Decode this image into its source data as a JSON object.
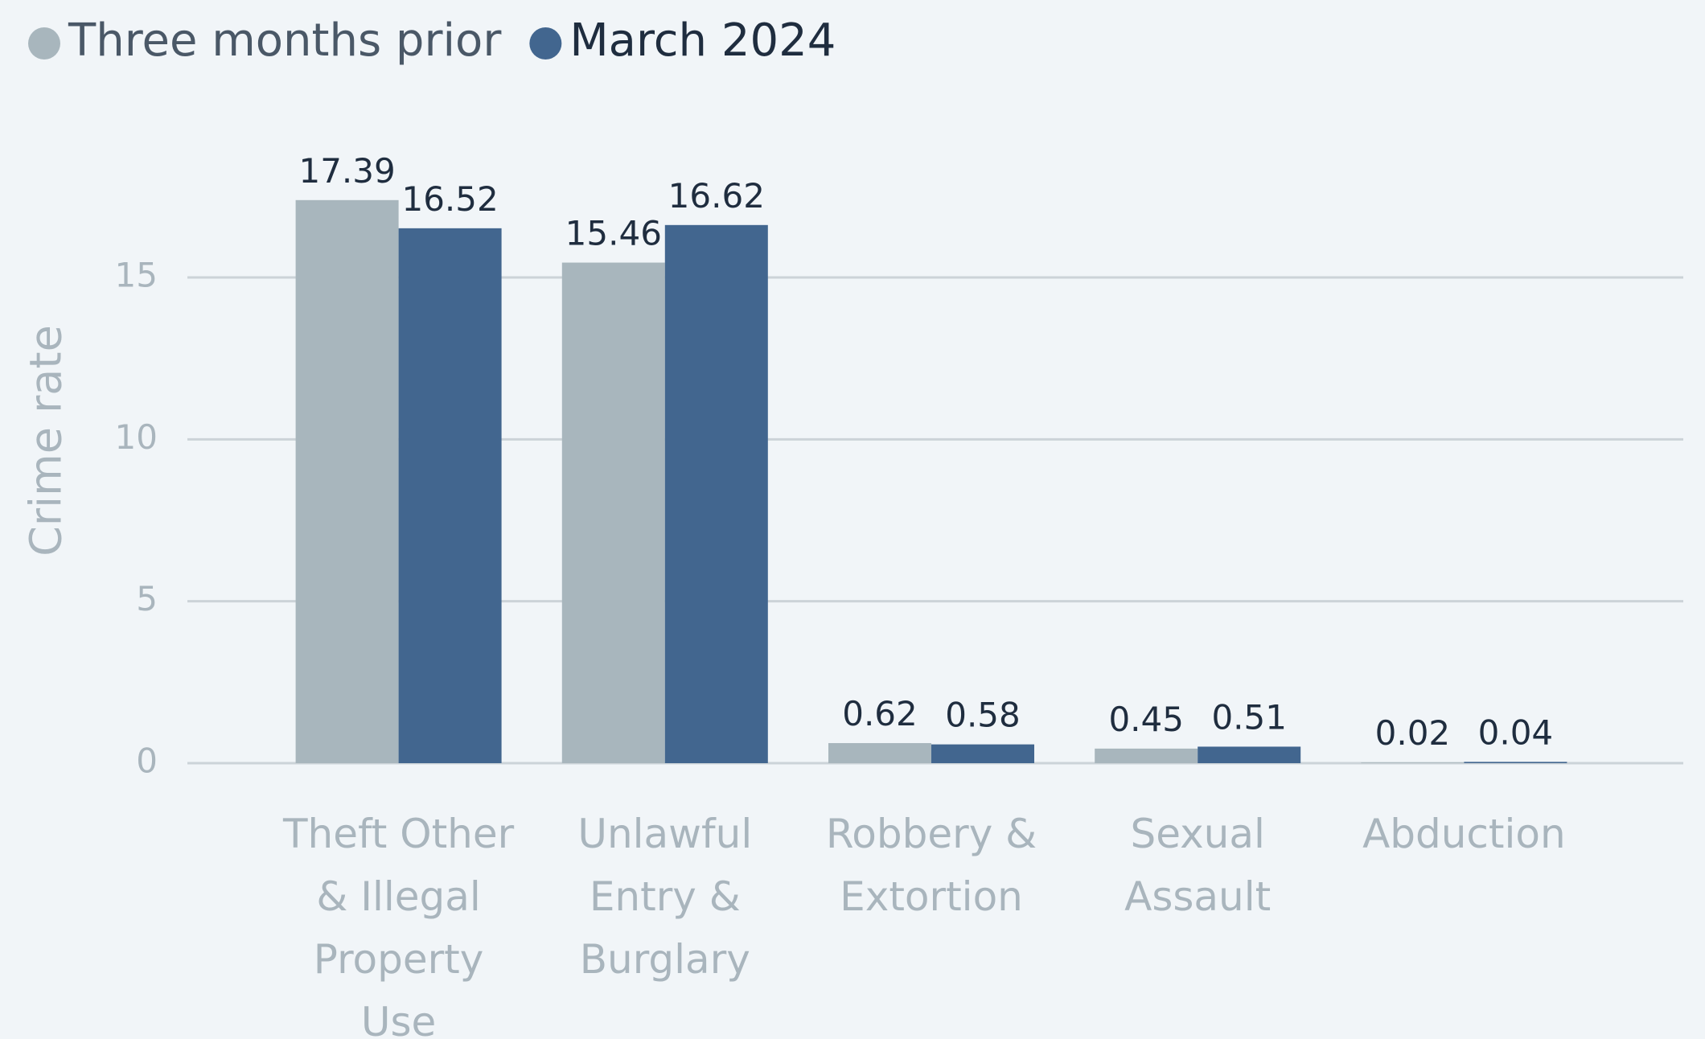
{
  "chart_data": {
    "type": "bar",
    "y_label": "Crime rate",
    "categories": [
      "Theft Other & Illegal Property Use",
      "Unlawful Entry & Burglary",
      "Robbery & Extortion",
      "Sexual Assault",
      "Abduction"
    ],
    "series": [
      {
        "name": "Three months prior",
        "color": "#a8b6bd",
        "values": [
          17.39,
          15.46,
          0.62,
          0.45,
          0.02
        ]
      },
      {
        "name": "March 2024",
        "color": "#42668f",
        "values": [
          16.52,
          16.62,
          0.58,
          0.51,
          0.04
        ]
      }
    ],
    "ylim": [
      0,
      19
    ],
    "yticks": [
      0,
      5,
      10,
      15
    ],
    "grid": true,
    "legend": "top-left"
  }
}
